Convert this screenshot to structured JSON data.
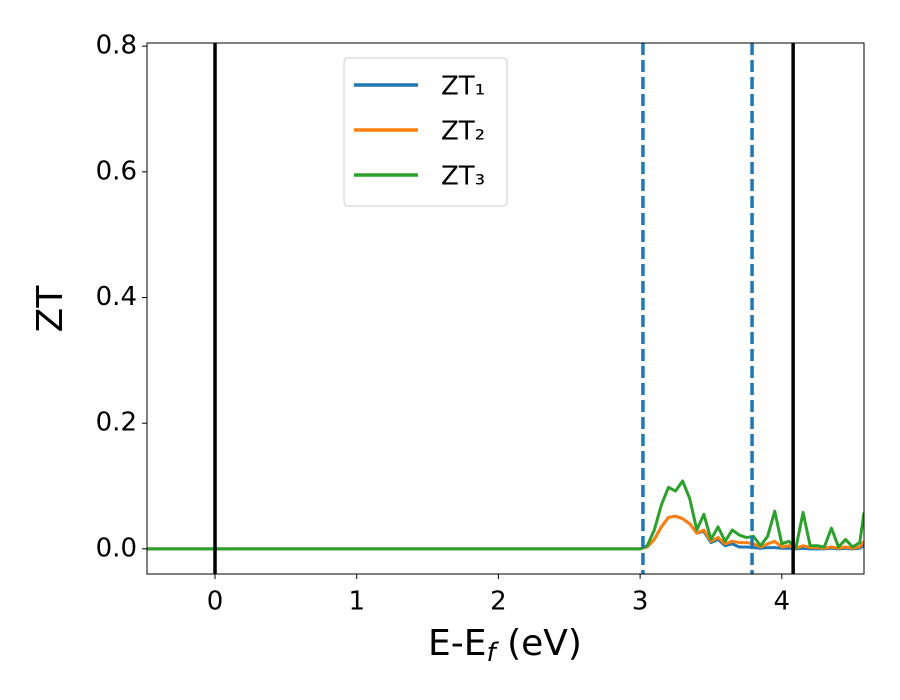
{
  "chart_data": {
    "type": "line",
    "xlabel": "E-Ef (eV)",
    "ylabel": "ZT",
    "x": [
      -0.48,
      3.0,
      3.05,
      3.1,
      3.15,
      3.2,
      3.25,
      3.3,
      3.35,
      3.4,
      3.45,
      3.5,
      3.55,
      3.6,
      3.65,
      3.7,
      3.75,
      3.8,
      3.85,
      3.9,
      3.95,
      4.0,
      4.05,
      4.1,
      4.15,
      4.2,
      4.25,
      4.3,
      4.35,
      4.4,
      4.45,
      4.5,
      4.55,
      4.58
    ],
    "series": [
      {
        "name": "ZT₁",
        "color": "#1f77b4",
        "values": [
          0,
          0,
          0.003,
          0.015,
          0.035,
          0.05,
          0.052,
          0.048,
          0.04,
          0.025,
          0.028,
          0.01,
          0.015,
          0.005,
          0.008,
          0.003,
          0.003,
          0.002,
          0.001,
          0.002,
          0.002,
          0.001,
          0.001,
          0,
          0.001,
          0,
          0,
          0,
          0.001,
          0,
          0.001,
          0,
          0.001,
          0.005
        ]
      },
      {
        "name": "ZT₂",
        "color": "#ff7f0e",
        "values": [
          0,
          0,
          0.003,
          0.015,
          0.035,
          0.05,
          0.052,
          0.048,
          0.04,
          0.025,
          0.03,
          0.012,
          0.018,
          0.008,
          0.012,
          0.01,
          0.01,
          0.008,
          0.003,
          0.008,
          0.012,
          0.003,
          0.005,
          0.001,
          0.005,
          0.002,
          0.002,
          0.001,
          0.003,
          0.001,
          0.003,
          0.001,
          0.003,
          0.012
        ]
      },
      {
        "name": "ZT₃",
        "color": "#2ca02c",
        "values": [
          0,
          0,
          0.005,
          0.03,
          0.07,
          0.098,
          0.092,
          0.108,
          0.08,
          0.03,
          0.055,
          0.015,
          0.035,
          0.012,
          0.03,
          0.022,
          0.018,
          0.02,
          0.005,
          0.02,
          0.06,
          0.008,
          0.012,
          0.002,
          0.058,
          0.005,
          0.005,
          0.003,
          0.033,
          0.003,
          0.015,
          0.003,
          0.01,
          0.058
        ]
      }
    ],
    "vlines": [
      {
        "x": 0,
        "color": "#000000",
        "style": "solid"
      },
      {
        "x": 4.08,
        "color": "#000000",
        "style": "solid"
      },
      {
        "x": 3.02,
        "color": "#1f77b4",
        "style": "dashed"
      },
      {
        "x": 3.79,
        "color": "#1f77b4",
        "style": "dashed"
      }
    ],
    "xlim": [
      -0.48,
      4.58
    ],
    "xticks": [
      0,
      1,
      2,
      3,
      4
    ],
    "ylim": [
      -0.04,
      0.805
    ],
    "yticks": [
      {
        "value": 0,
        "label": "0.0"
      },
      0.2,
      0.4,
      0.6,
      0.8
    ],
    "legend": "upper center",
    "grid": false
  }
}
